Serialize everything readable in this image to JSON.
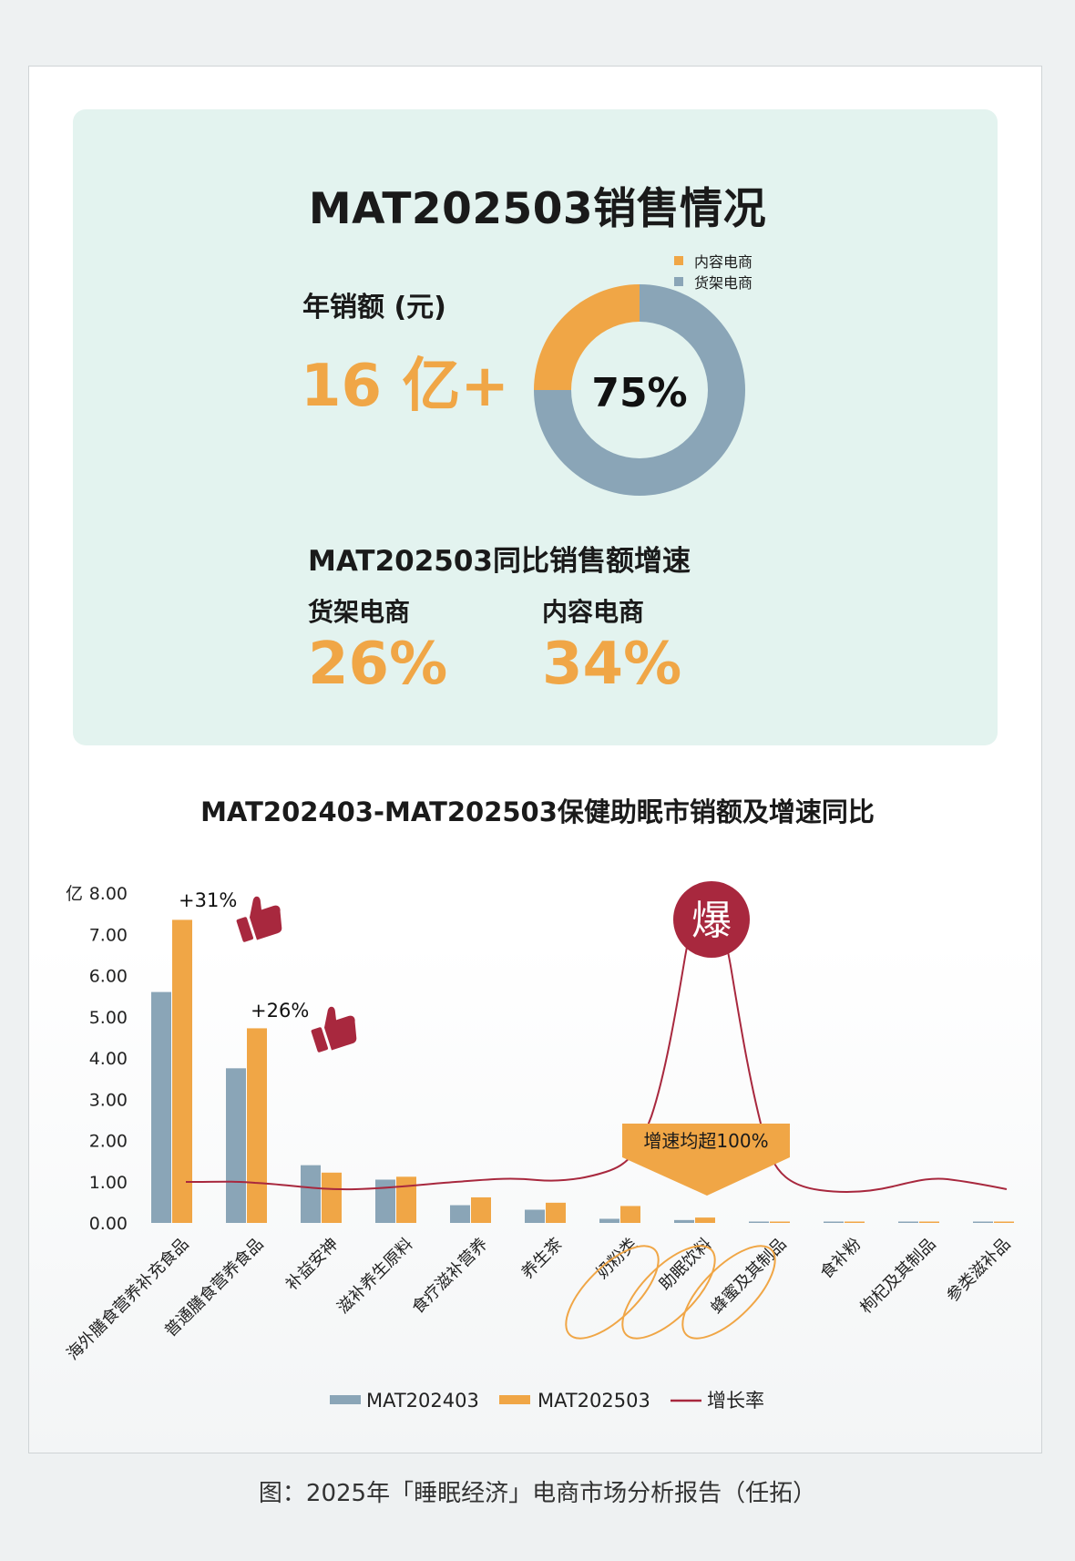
{
  "summary": {
    "title": "MAT202503销售情况",
    "annual_sales_label": "年销额 (元)",
    "annual_sales_value": "16 亿+",
    "donut": {
      "center_label": "75%",
      "legend": [
        {
          "name": "内容电商",
          "color": "#f0a646"
        },
        {
          "name": "货架电商",
          "color": "#8aa5b7"
        }
      ],
      "shares": [
        25,
        75
      ]
    },
    "growth_title": "MAT202503同比销售额增速",
    "growth": [
      {
        "label": "货架电商",
        "value": "26%"
      },
      {
        "label": "内容电商",
        "value": "34%"
      }
    ]
  },
  "chart_data": {
    "type": "bar",
    "title": "MAT202403-MAT202503保健助眠市销额及增速同比",
    "ylabel": "亿",
    "ylim": [
      0,
      8
    ],
    "yticks": [
      "0.00",
      "1.00",
      "2.00",
      "3.00",
      "4.00",
      "5.00",
      "6.00",
      "7.00",
      "8.00"
    ],
    "categories": [
      "海外膳食营养补充食品",
      "普通膳食营养食品",
      "补益安神",
      "滋补养生原料",
      "食疗滋补营养",
      "养生茶",
      "奶粉类",
      "助眠饮料",
      "蜂蜜及其制品",
      "食补粉",
      "枸杞及其制品",
      "参类滋补品"
    ],
    "series": [
      {
        "name": "MAT202403",
        "type": "bar",
        "color": "#8aa5b7",
        "values": [
          5.6,
          3.75,
          1.4,
          1.05,
          0.43,
          0.32,
          0.1,
          0.07,
          0.02,
          0.03,
          0.01,
          0.01
        ]
      },
      {
        "name": "MAT202503",
        "type": "bar",
        "color": "#f0a646",
        "values": [
          7.35,
          4.72,
          1.22,
          1.12,
          0.62,
          0.49,
          0.41,
          0.13,
          0.03,
          0.02,
          0.01,
          0.01
        ]
      },
      {
        "name": "增长率",
        "type": "line",
        "color": "#a8283e"
      }
    ],
    "annotations": {
      "up_first": "+31%",
      "up_second": "+26%",
      "burst": "爆",
      "callout": "增速均超100%"
    },
    "legend_position": "bottom"
  },
  "caption": "图：2025年「睡眠经济」电商市场分析报告（任拓）"
}
